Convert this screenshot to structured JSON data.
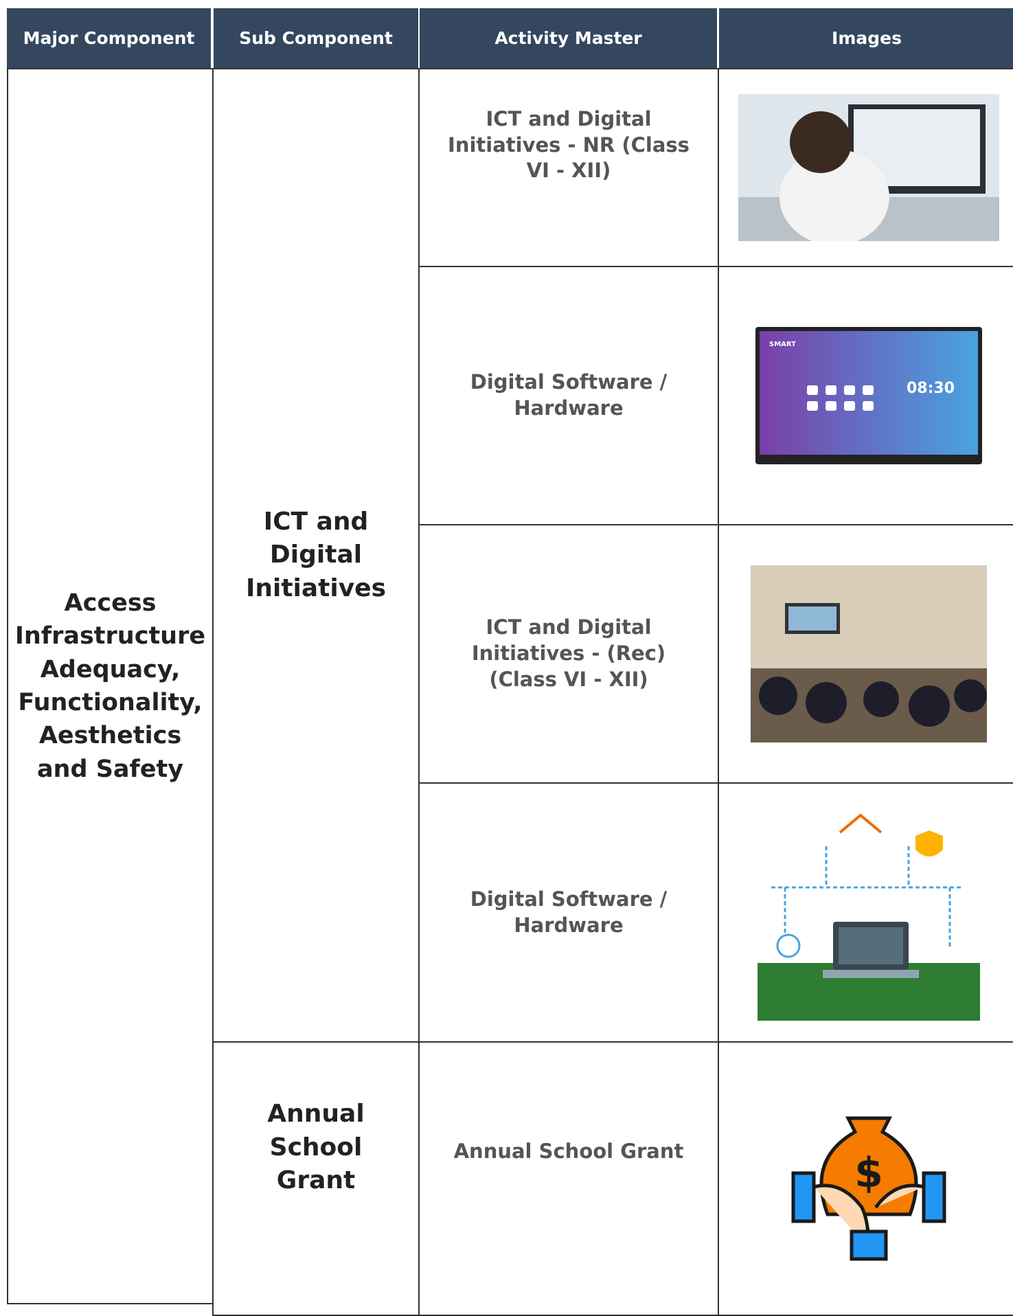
{
  "table": {
    "header": [
      "Major Component",
      "Sub Component",
      "Activity Master",
      "Images"
    ],
    "major_component": "Access Infrastructure Adequacy, Functionality, Aesthetics and Safety",
    "sub_components": [
      "ICT and Digital Initiatives",
      "Annual School Grant"
    ],
    "activities": [
      "ICT and Digital Initiatives - NR (Class VI - XII)",
      "Digital Software / Hardware",
      "ICT and Digital Initiatives - (Rec) (Class VI - XII)",
      "Digital Software / Hardware",
      "Annual School Grant"
    ],
    "screen_text": {
      "brand": "SMART",
      "time": "08:30"
    }
  }
}
